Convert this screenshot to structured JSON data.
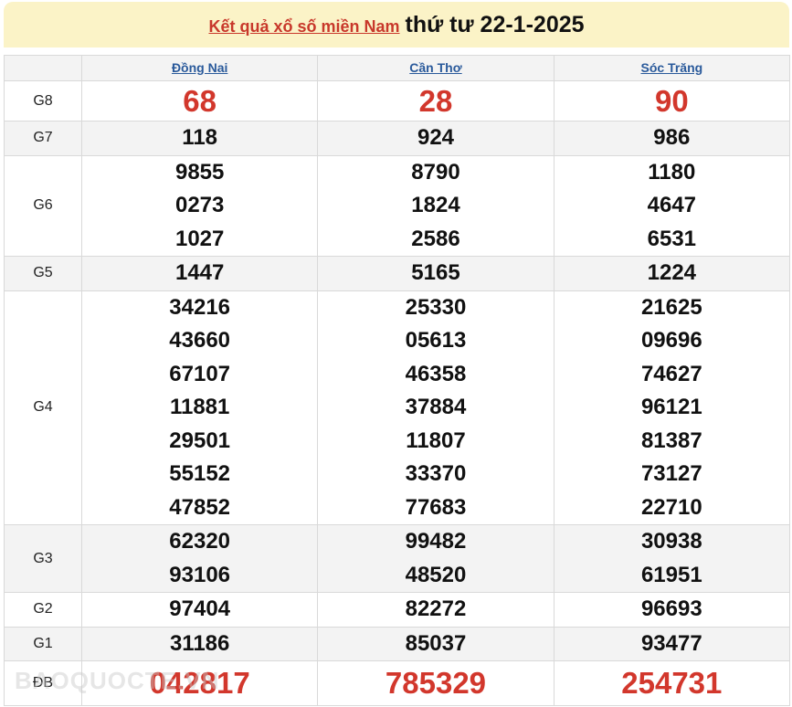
{
  "header": {
    "link": "Kết quả xổ số miền Nam",
    "date": "thứ tư 22-1-2025"
  },
  "provinces": [
    "Đồng Nai",
    "Cần Thơ",
    "Sóc Trăng"
  ],
  "rows": [
    {
      "label": "G8",
      "style": "big",
      "values": [
        [
          "68"
        ],
        [
          "28"
        ],
        [
          "90"
        ]
      ]
    },
    {
      "label": "G7",
      "style": "",
      "values": [
        [
          "118"
        ],
        [
          "924"
        ],
        [
          "986"
        ]
      ]
    },
    {
      "label": "G6",
      "style": "",
      "values": [
        [
          "9855",
          "0273",
          "1027"
        ],
        [
          "8790",
          "1824",
          "2586"
        ],
        [
          "1180",
          "4647",
          "6531"
        ]
      ]
    },
    {
      "label": "G5",
      "style": "",
      "values": [
        [
          "1447"
        ],
        [
          "5165"
        ],
        [
          "1224"
        ]
      ]
    },
    {
      "label": "G4",
      "style": "",
      "values": [
        [
          "34216",
          "43660",
          "67107",
          "11881",
          "29501",
          "55152",
          "47852"
        ],
        [
          "25330",
          "05613",
          "46358",
          "37884",
          "11807",
          "33370",
          "77683"
        ],
        [
          "21625",
          "09696",
          "74627",
          "96121",
          "81387",
          "73127",
          "22710"
        ]
      ]
    },
    {
      "label": "G3",
      "style": "",
      "values": [
        [
          "62320",
          "93106"
        ],
        [
          "99482",
          "48520"
        ],
        [
          "30938",
          "61951"
        ]
      ]
    },
    {
      "label": "G2",
      "style": "",
      "values": [
        [
          "97404"
        ],
        [
          "82272"
        ],
        [
          "96693"
        ]
      ]
    },
    {
      "label": "G1",
      "style": "",
      "values": [
        [
          "31186"
        ],
        [
          "85037"
        ],
        [
          "93477"
        ]
      ]
    },
    {
      "label": "ĐB",
      "style": "db",
      "values": [
        [
          "042817"
        ],
        [
          "785329"
        ],
        [
          "254731"
        ]
      ]
    }
  ],
  "watermark": "BAOQUOCTE.VN"
}
